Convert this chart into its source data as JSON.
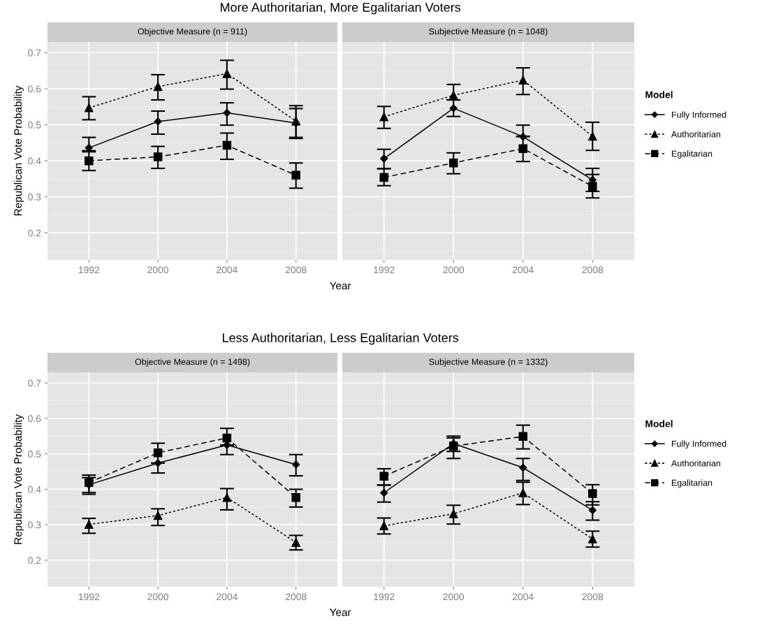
{
  "chart_data": [
    {
      "type": "line",
      "title": "More Authoritarian, More Egalitarian Voters",
      "subtitle": "Objective Measure (n = 911)",
      "xlabel": "Year",
      "ylabel": "Republican Vote Probability",
      "categories": [
        "1992",
        "2000",
        "2004",
        "2008"
      ],
      "ylim": [
        0.125,
        0.73
      ],
      "yticks": [
        0.2,
        0.3,
        0.4,
        0.5,
        0.6,
        0.7
      ],
      "grid": true,
      "series": [
        {
          "color": "#000000",
          "marker": "diamond",
          "line_style": "solid",
          "values": [
            0.436,
            0.509,
            0.533,
            0.505
          ],
          "errors": [
            [
              0.425,
              0.465
            ],
            [
              0.474,
              0.538
            ],
            [
              0.499,
              0.561
            ],
            [
              0.465,
              0.545
            ]
          ]
        },
        {
          "color": "#000000",
          "marker": "triangle",
          "line_style": "dotted",
          "values": [
            0.547,
            0.606,
            0.642,
            0.51
          ],
          "errors": [
            [
              0.514,
              0.578
            ],
            [
              0.569,
              0.639
            ],
            [
              0.599,
              0.679
            ],
            [
              0.462,
              0.553
            ]
          ]
        },
        {
          "color": "#000000",
          "marker": "square",
          "line_style": "dashed",
          "values": [
            0.4,
            0.411,
            0.443,
            0.36
          ],
          "errors": [
            [
              0.373,
              0.428
            ],
            [
              0.379,
              0.44
            ],
            [
              0.404,
              0.477
            ],
            [
              0.324,
              0.394
            ]
          ]
        }
      ]
    },
    {
      "type": "line",
      "subtitle": "Subjective Measure (n = 1048)",
      "categories": [
        "1992",
        "2000",
        "2004",
        "2008"
      ],
      "ylim": [
        0.125,
        0.73
      ],
      "yticks": [
        0.2,
        0.3,
        0.4,
        0.5,
        0.6,
        0.7
      ],
      "grid": true,
      "legend": "right",
      "legend_title": "Model",
      "tick_labels": "x",
      "series": [
        {
          "name": "Fully Informed",
          "color": "#000000",
          "marker": "diamond",
          "line_style": "solid",
          "values": [
            0.406,
            0.546,
            0.467,
            0.347
          ],
          "errors": [
            [
              0.378,
              0.432
            ],
            [
              0.523,
              0.569
            ],
            [
              0.467,
              0.499
            ],
            [
              0.315,
              0.379
            ]
          ]
        },
        {
          "name": "Authoritarian",
          "color": "#000000",
          "marker": "triangle",
          "line_style": "dotted",
          "values": [
            0.522,
            0.582,
            0.624,
            0.468
          ],
          "errors": [
            [
              0.49,
              0.551
            ],
            [
              0.569,
              0.612
            ],
            [
              0.584,
              0.658
            ],
            [
              0.429,
              0.507
            ]
          ]
        },
        {
          "name": "Egalitarian",
          "color": "#000000",
          "marker": "square",
          "line_style": "dashed",
          "values": [
            0.354,
            0.394,
            0.434,
            0.329
          ],
          "errors": [
            [
              0.331,
              0.378
            ],
            [
              0.364,
              0.422
            ],
            [
              0.398,
              0.468
            ],
            [
              0.297,
              0.362
            ]
          ]
        }
      ]
    },
    {
      "type": "line",
      "title": "Less Authoritarian, Less Egalitarian Voters",
      "subtitle": "Objective Measure (n = 1498)",
      "xlabel": "Year",
      "ylabel": "Republican Vote Probability",
      "categories": [
        "1992",
        "2000",
        "2004",
        "2008"
      ],
      "ylim": [
        0.125,
        0.73
      ],
      "yticks": [
        0.2,
        0.3,
        0.4,
        0.5,
        0.6,
        0.7
      ],
      "grid": true,
      "series": [
        {
          "color": "#000000",
          "marker": "diamond",
          "line_style": "solid",
          "values": [
            0.413,
            0.474,
            0.525,
            0.47
          ],
          "errors": [
            [
              0.386,
              0.433
            ],
            [
              0.446,
              0.474
            ],
            [
              0.498,
              0.525
            ],
            [
              0.438,
              0.498
            ]
          ]
        },
        {
          "color": "#000000",
          "marker": "triangle",
          "line_style": "dotted",
          "values": [
            0.301,
            0.326,
            0.377,
            0.25
          ],
          "errors": [
            [
              0.276,
              0.318
            ],
            [
              0.298,
              0.345
            ],
            [
              0.342,
              0.402
            ],
            [
              0.229,
              0.27
            ]
          ]
        },
        {
          "color": "#000000",
          "marker": "square",
          "line_style": "dashed",
          "values": [
            0.419,
            0.503,
            0.545,
            0.377
          ],
          "errors": [
            [
              0.391,
              0.44
            ],
            [
              0.474,
              0.53
            ],
            [
              0.523,
              0.572
            ],
            [
              0.35,
              0.4
            ]
          ]
        }
      ]
    },
    {
      "type": "line",
      "subtitle": "Subjective Measure (n = 1332)",
      "categories": [
        "1992",
        "2000",
        "2004",
        "2008"
      ],
      "ylim": [
        0.125,
        0.73
      ],
      "yticks": [
        0.2,
        0.3,
        0.4,
        0.5,
        0.6,
        0.7
      ],
      "grid": true,
      "legend": "right",
      "legend_title": "Model",
      "tick_labels": "x",
      "series": [
        {
          "name": "Fully Informed",
          "color": "#000000",
          "marker": "diamond",
          "line_style": "solid",
          "values": [
            0.39,
            0.529,
            0.461,
            0.341
          ],
          "errors": [
            [
              0.364,
              0.412
            ],
            [
              0.507,
              0.55
            ],
            [
              0.425,
              0.487
            ],
            [
              0.313,
              0.365
            ]
          ]
        },
        {
          "name": "Authoritarian",
          "color": "#000000",
          "marker": "triangle",
          "line_style": "dotted",
          "values": [
            0.297,
            0.331,
            0.39,
            0.26
          ],
          "errors": [
            [
              0.274,
              0.319
            ],
            [
              0.302,
              0.355
            ],
            [
              0.357,
              0.42
            ],
            [
              0.237,
              0.282
            ]
          ]
        },
        {
          "name": "Egalitarian",
          "color": "#000000",
          "marker": "square",
          "line_style": "dashed",
          "values": [
            0.437,
            0.522,
            0.549,
            0.388
          ],
          "errors": [
            [
              0.412,
              0.458
            ],
            [
              0.487,
              0.545
            ],
            [
              0.514,
              0.581
            ],
            [
              0.356,
              0.413
            ]
          ]
        }
      ]
    }
  ]
}
